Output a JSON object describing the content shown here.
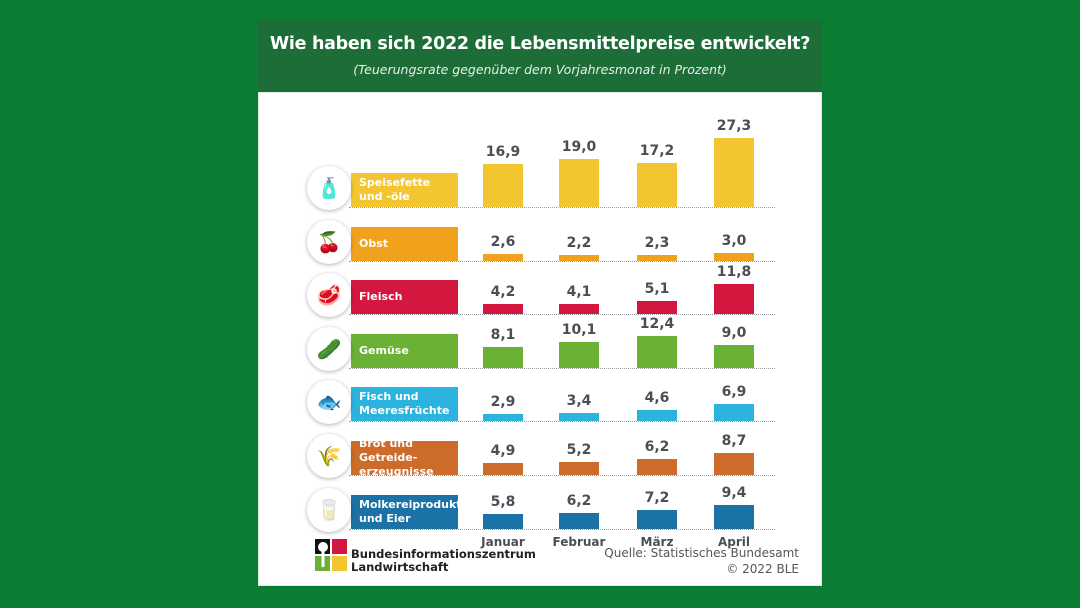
{
  "chart_data": {
    "type": "bar",
    "title": "Wie haben sich 2022 die Lebensmittelpreise entwickelt?",
    "subtitle": "(Teuerungsrate gegenüber dem Vorjahresmonat in Prozent)",
    "categories": [
      "Januar",
      "Februar",
      "März",
      "April"
    ],
    "series": [
      {
        "name": "Speisefette\nund -öle",
        "icon": "oil-bottle-icon",
        "color": "#f2c531",
        "values": [
          16.9,
          19.0,
          17.2,
          27.3
        ],
        "labels": [
          "16,9",
          "19,0",
          "17,2",
          "27,3"
        ]
      },
      {
        "name": "Obst",
        "icon": "cherry-icon",
        "color": "#f0a21c",
        "values": [
          2.6,
          2.2,
          2.3,
          3.0
        ],
        "labels": [
          "2,6",
          "2,2",
          "2,3",
          "3,0"
        ]
      },
      {
        "name": "Fleisch",
        "icon": "meat-icon",
        "color": "#d3173f",
        "values": [
          4.2,
          4.1,
          5.1,
          11.8
        ],
        "labels": [
          "4,2",
          "4,1",
          "5,1",
          "11,8"
        ]
      },
      {
        "name": "Gemüse",
        "icon": "cucumber-icon",
        "color": "#6ab136",
        "values": [
          8.1,
          10.1,
          12.4,
          9.0
        ],
        "labels": [
          "8,1",
          "10,1",
          "12,4",
          "9,0"
        ]
      },
      {
        "name": "Fisch und\nMeeresfrüchte",
        "icon": "fish-icon",
        "color": "#2bb3e0",
        "values": [
          2.9,
          3.4,
          4.6,
          6.9
        ],
        "labels": [
          "2,9",
          "3,4",
          "4,6",
          "6,9"
        ]
      },
      {
        "name": "Brot und Getreide-\nerzeugnisse",
        "icon": "grain-icon",
        "color": "#cc6b2a",
        "values": [
          4.9,
          5.2,
          6.2,
          8.7
        ],
        "labels": [
          "4,9",
          "5,2",
          "6,2",
          "8,7"
        ]
      },
      {
        "name": "Molkereiprodukte\nund Eier",
        "icon": "milk-bottle-icon",
        "color": "#1a72a6",
        "values": [
          5.8,
          6.2,
          7.2,
          9.4
        ],
        "labels": [
          "5,8",
          "6,2",
          "7,2",
          "9,4"
        ]
      }
    ]
  },
  "footer": {
    "logo_line1": "Bundesinformationszentrum",
    "logo_line2": "Landwirtschaft",
    "source": "Quelle: Statistisches Bundesamt",
    "copyright": "© 2022 BLE"
  }
}
